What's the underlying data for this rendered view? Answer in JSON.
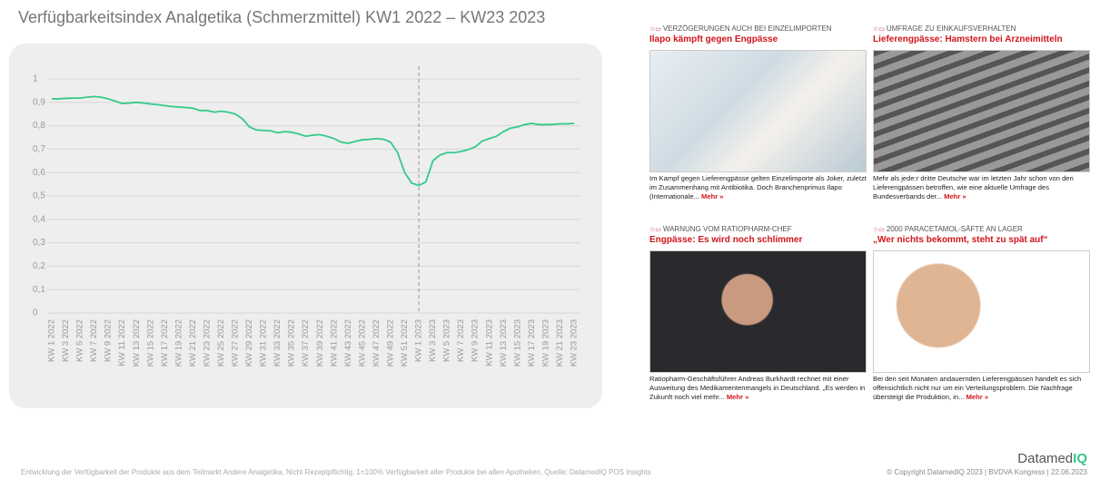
{
  "chart_data": {
    "type": "line",
    "title": "Verfügbarkeitsindex Analgetika (Schmerzmittel) KW1 2022 – KW23 2023",
    "categories": [
      "KW 1 2022",
      null,
      "KW 3 2022",
      null,
      "KW 5 2022",
      null,
      "KW 7 2022",
      null,
      "KW 9 2022",
      null,
      "KW 11 2022",
      null,
      "KW 13 2022",
      null,
      "KW 15 2022",
      null,
      "KW 17 2022",
      null,
      "KW 19 2022",
      null,
      "KW 21 2022",
      null,
      "KW 23 2022",
      null,
      "KW 25 2022",
      null,
      "KW 27 2022",
      null,
      "KW 29 2022",
      null,
      "KW 31 2022",
      null,
      "KW 33 2022",
      null,
      "KW 35 2022",
      null,
      "KW 37 2022",
      null,
      "KW 39 2022",
      null,
      "KW 41 2022",
      null,
      "KW 43 2022",
      null,
      "KW 45 2022",
      null,
      "KW 47 2022",
      null,
      "KW 49 2022",
      null,
      "KW 51 2022",
      null,
      "KW 1 2023",
      null,
      "KW 3 2023",
      null,
      "KW 5 2023",
      null,
      "KW 7 2023",
      null,
      "KW 9 2023",
      null,
      "KW 11 2023",
      null,
      "KW 13 2023",
      null,
      "KW 15 2023",
      null,
      "KW 17 2023",
      null,
      "KW 19 2023",
      null,
      "KW 21 2023",
      null,
      "KW 23 2023"
    ],
    "values": [
      0.915,
      0.915,
      0.917,
      0.918,
      0.918,
      0.922,
      0.925,
      0.922,
      0.915,
      0.905,
      0.895,
      0.897,
      0.9,
      0.897,
      0.893,
      0.89,
      0.886,
      0.882,
      0.88,
      0.878,
      0.875,
      0.865,
      0.865,
      0.858,
      0.862,
      0.858,
      0.85,
      0.83,
      0.795,
      0.782,
      0.78,
      0.778,
      0.77,
      0.775,
      0.772,
      0.765,
      0.755,
      0.76,
      0.762,
      0.755,
      0.745,
      0.73,
      0.725,
      0.733,
      0.74,
      0.742,
      0.745,
      0.742,
      0.73,
      0.685,
      0.6,
      0.555,
      0.545,
      0.56,
      0.65,
      0.675,
      0.685,
      0.685,
      0.69,
      0.698,
      0.71,
      0.735,
      0.745,
      0.755,
      0.775,
      0.79,
      0.795,
      0.805,
      0.81,
      0.805,
      0.805,
      0.806,
      0.808,
      0.808,
      0.81
    ],
    "color": "#35c98a",
    "ylim": [
      0,
      1
    ],
    "yticks": [
      0,
      {
        "value": 0.1,
        "label": "0,1"
      },
      {
        "value": 0.2,
        "label": "0,2"
      },
      {
        "value": 0.3,
        "label": "0,3"
      },
      {
        "value": 0.4,
        "label": "0,4"
      },
      {
        "value": 0.5,
        "label": "0,5"
      },
      {
        "value": 0.6,
        "label": "0,6"
      },
      {
        "value": 0.7,
        "label": "0,7"
      },
      {
        "value": 0.8,
        "label": "0,8"
      },
      {
        "value": 0.9,
        "label": "0,9"
      },
      1
    ],
    "grid": true,
    "vline_index": 52
  },
  "news": [
    {
      "kicker": "VERZÖGERUNGEN AUCH BEI EINZELIMPORTEN",
      "title": "Ilapo kämpft gegen Engpässe",
      "text": "Im Kampf gegen Lieferengpässe gelten Einzelimporte als Joker, zuletzt im Zusammenhang mit Antibiotika. Doch Branchenprimus Ilapo (Internationale...",
      "more": "Mehr »"
    },
    {
      "kicker": "UMFRAGE ZU EINKAUFSVERHALTEN",
      "title": "Lieferengpässe: Hamstern bei Arzneimitteln",
      "text": "Mehr als jede:r dritte Deutsche war im letzten Jahr schon von den Lieferengpässen betroffen, wie eine aktuelle Umfrage des Bundesverbands der...",
      "more": "Mehr »"
    },
    {
      "kicker": "WARNUNG VOM RATIOPHARM-CHEF",
      "title": "Engpässe: Es wird noch schlimmer",
      "text": "Ratiopharm-Geschäftsführer Andreas Burkhardt rechnet mit einer Ausweitung des Medikamentenmangels in Deutschland. „Es werden in Zukunft noch viel mehr...",
      "more": "Mehr »"
    },
    {
      "kicker": "2000 PARACETAMOL-SÄFTE AN LAGER",
      "title": "„Wer nichts bekommt, steht zu spät auf“",
      "text": "Bei den seit Monaten andauernden Lieferengpässen handelt es sich offensichtlich nicht nur um ein Verteilungsproblem. Die Nachfrage übersteigt die Produktion, in...",
      "more": "Mehr »"
    }
  ],
  "footer": {
    "caption": "Entwicklung der Verfügbarkeit der Produkte aus dem Teilmarkt Andere Analgetika, Nicht Rezeptpflichtig, 1=100% Verfügbarkeit aller Produkte bei allen Apotheken, Quelle: DatamedIQ POS Insights",
    "copyright": "© Copyright DatamedIQ 2023 | BVDVA Kongress | 22.06.2023",
    "logo_a": "Datamed",
    "logo_b": "IQ"
  }
}
